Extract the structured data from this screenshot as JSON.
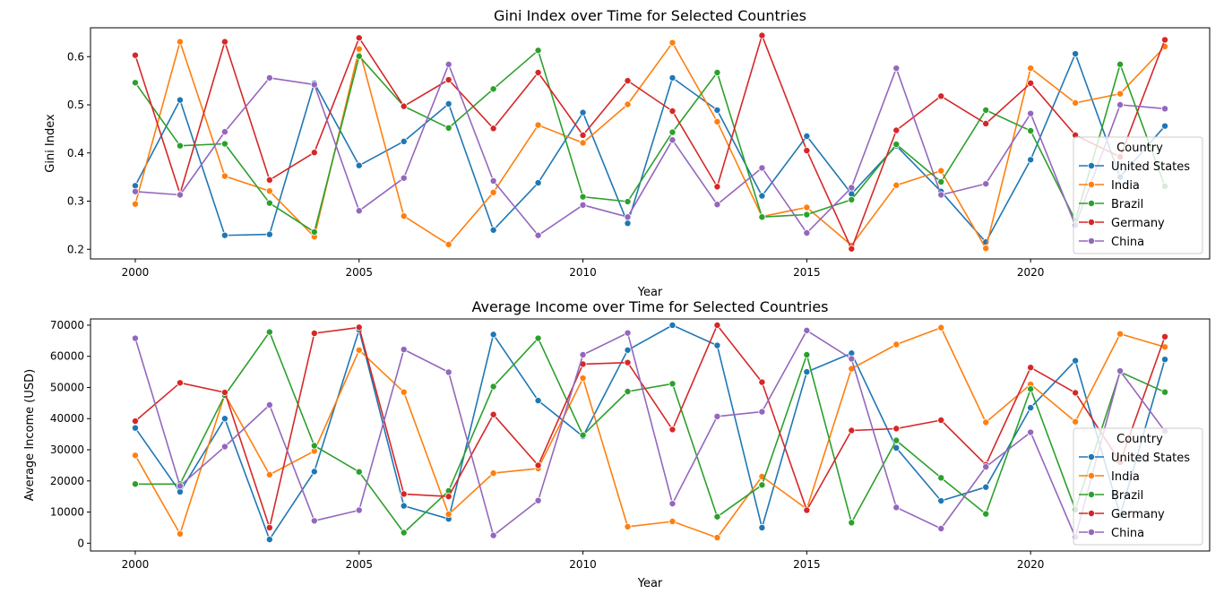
{
  "chart_data": [
    {
      "type": "line",
      "title": "Gini Index over Time for Selected Countries",
      "xlabel": "Year",
      "ylabel": "Gini Index",
      "xlim": [
        1999,
        2024
      ],
      "ylim": [
        0.18,
        0.66
      ],
      "xticks": [
        2000,
        2005,
        2010,
        2015,
        2020
      ],
      "yticks": [
        0.2,
        0.3,
        0.4,
        0.5,
        0.6
      ],
      "ytick_labels": [
        "0.2",
        "0.3",
        "0.4",
        "0.5",
        "0.6"
      ],
      "grid": false,
      "legend": {
        "title": "Country",
        "placement": "right"
      },
      "x": [
        2000,
        2001,
        2002,
        2003,
        2004,
        2005,
        2006,
        2007,
        2008,
        2009,
        2010,
        2011,
        2012,
        2013,
        2014,
        2015,
        2016,
        2017,
        2018,
        2019,
        2020,
        2021,
        2022,
        2023
      ],
      "series": [
        {
          "name": "United States",
          "color": "#1f77b4",
          "values": [
            0.332,
            0.51,
            0.229,
            0.231,
            0.545,
            0.374,
            0.424,
            0.502,
            0.24,
            0.338,
            0.484,
            0.254,
            0.556,
            0.489,
            0.311,
            0.435,
            0.315,
            0.415,
            0.32,
            0.215,
            0.386,
            0.606,
            0.35,
            0.456
          ]
        },
        {
          "name": "India",
          "color": "#ff7f0e",
          "values": [
            0.294,
            0.631,
            0.352,
            0.321,
            0.226,
            0.616,
            0.269,
            0.21,
            0.318,
            0.458,
            0.421,
            0.501,
            0.629,
            0.465,
            0.268,
            0.287,
            0.208,
            0.333,
            0.363,
            0.202,
            0.576,
            0.504,
            0.523,
            0.621
          ]
        },
        {
          "name": "Brazil",
          "color": "#2ca02c",
          "values": [
            0.546,
            0.415,
            0.419,
            0.296,
            0.236,
            0.601,
            0.497,
            0.452,
            0.533,
            0.613,
            0.309,
            0.299,
            0.443,
            0.567,
            0.267,
            0.272,
            0.303,
            0.418,
            0.34,
            0.489,
            0.446,
            0.26,
            0.584,
            0.331
          ]
        },
        {
          "name": "Germany",
          "color": "#d62728",
          "values": [
            0.603,
            0.315,
            0.631,
            0.344,
            0.401,
            0.639,
            0.497,
            0.552,
            0.451,
            0.567,
            0.437,
            0.55,
            0.487,
            0.33,
            0.644,
            0.405,
            0.201,
            0.447,
            0.518,
            0.461,
            0.545,
            0.437,
            0.392,
            0.635
          ]
        },
        {
          "name": "China",
          "color": "#9467bd",
          "values": [
            0.32,
            0.313,
            0.444,
            0.556,
            0.542,
            0.28,
            0.348,
            0.584,
            0.342,
            0.229,
            0.292,
            0.267,
            0.427,
            0.293,
            0.369,
            0.234,
            0.328,
            0.576,
            0.313,
            0.336,
            0.482,
            0.25,
            0.5,
            0.492
          ]
        }
      ]
    },
    {
      "type": "line",
      "title": "Average Income over Time for Selected Countries",
      "xlabel": "Year",
      "ylabel": "Average Income (USD)",
      "xlim": [
        1999,
        2024
      ],
      "ylim": [
        -2500,
        72000
      ],
      "xticks": [
        2000,
        2005,
        2010,
        2015,
        2020
      ],
      "yticks": [
        0,
        10000,
        20000,
        30000,
        40000,
        50000,
        60000,
        70000
      ],
      "ytick_labels": [
        "0",
        "10000",
        "20000",
        "30000",
        "40000",
        "50000",
        "60000",
        "70000"
      ],
      "grid": false,
      "legend": {
        "title": "Country",
        "placement": "right"
      },
      "x": [
        2000,
        2001,
        2002,
        2003,
        2004,
        2005,
        2006,
        2007,
        2008,
        2009,
        2010,
        2011,
        2012,
        2013,
        2014,
        2015,
        2016,
        2017,
        2018,
        2019,
        2020,
        2021,
        2022,
        2023
      ],
      "series": [
        {
          "name": "United States",
          "color": "#1f77b4",
          "values": [
            37000,
            16500,
            40000,
            1200,
            23000,
            68500,
            12000,
            7800,
            67000,
            45800,
            34300,
            62000,
            70000,
            63500,
            5000,
            55000,
            61000,
            30600,
            13600,
            18000,
            43500,
            58600,
            9000,
            59000
          ]
        },
        {
          "name": "India",
          "color": "#ff7f0e",
          "values": [
            28200,
            3000,
            47800,
            22000,
            29600,
            62000,
            48500,
            9300,
            22500,
            24000,
            53000,
            5300,
            7000,
            1800,
            21400,
            11000,
            56000,
            63800,
            69200,
            38800,
            51000,
            39000,
            67200,
            63000
          ]
        },
        {
          "name": "Brazil",
          "color": "#2ca02c",
          "values": [
            19000,
            19000,
            47500,
            67800,
            31300,
            22900,
            3400,
            16800,
            50300,
            65800,
            34700,
            48700,
            51200,
            8500,
            18700,
            60500,
            6600,
            33000,
            21000,
            9400,
            49500,
            10800,
            55000,
            48500
          ]
        },
        {
          "name": "Germany",
          "color": "#d62728",
          "values": [
            39200,
            51500,
            48400,
            5000,
            67400,
            69300,
            15800,
            15000,
            41300,
            25000,
            57500,
            58000,
            36500,
            70000,
            51700,
            10600,
            36200,
            36800,
            39500,
            25200,
            56400,
            48300,
            26000,
            66300
          ]
        },
        {
          "name": "China",
          "color": "#9467bd",
          "values": [
            65800,
            18400,
            31000,
            44400,
            7200,
            10600,
            62200,
            54900,
            2500,
            13700,
            60500,
            67500,
            12700,
            40700,
            42200,
            68300,
            59200,
            11500,
            4700,
            24500,
            35600,
            2000,
            55300,
            36000
          ]
        }
      ]
    }
  ]
}
